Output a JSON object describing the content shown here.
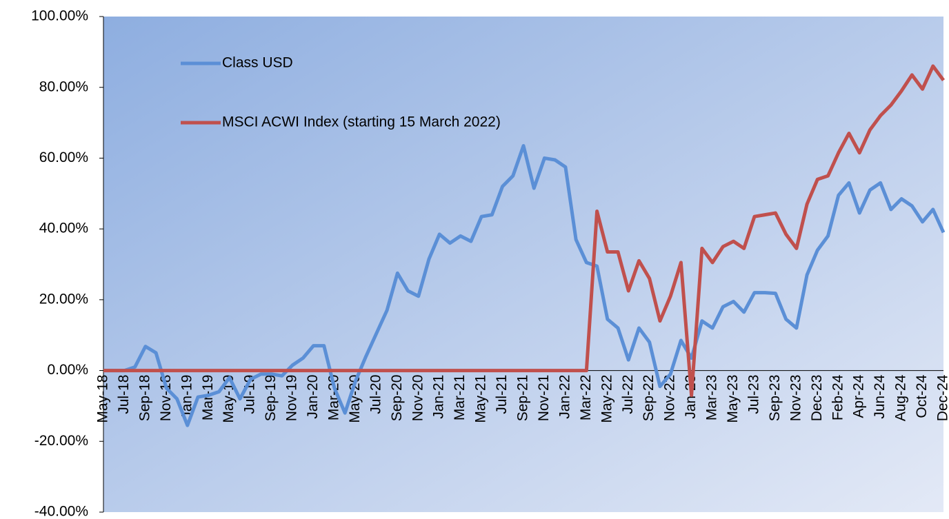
{
  "chart_data": {
    "type": "line",
    "categories": [
      "May-18",
      null,
      "Jul-18",
      null,
      "Sep-18",
      null,
      "Nov-18",
      null,
      "Jan-19",
      null,
      "Mar-19",
      null,
      "May-19",
      null,
      "Jul-19",
      null,
      "Sep-19",
      null,
      "Nov-19",
      null,
      "Jan-20",
      null,
      "Mar-20",
      null,
      "May-20",
      null,
      "Jul-20",
      null,
      "Sep-20",
      null,
      "Nov-20",
      null,
      "Jan-21",
      null,
      "Mar-21",
      null,
      "May-21",
      null,
      "Jul-21",
      null,
      "Sep-21",
      null,
      "Nov-21",
      null,
      "Jan-22",
      null,
      "Mar-22",
      null,
      "May-22",
      null,
      "Jul-22",
      null,
      "Sep-22",
      null,
      "Nov-22",
      null,
      "Jan-23",
      null,
      "Mar-23",
      null,
      "May-23",
      null,
      "Jul-23",
      null,
      "Sep-23",
      null,
      "Nov-23",
      null,
      "Dec-23",
      null,
      "Feb-24",
      null,
      "Apr-24",
      null,
      "Jun-24",
      null,
      "Aug-24",
      null,
      "Oct-24",
      null,
      "Dec-24"
    ],
    "series": [
      {
        "name": "Class USD",
        "color": "#5b8fd6",
        "values": [
          0,
          0,
          0,
          1,
          6.8,
          5,
          -5,
          -8,
          -15.5,
          -7.5,
          -7,
          -6,
          -2,
          -8,
          -2.5,
          -1,
          -1,
          -1.5,
          1.5,
          3.5,
          7,
          7,
          -5,
          -12,
          -3,
          4,
          10.5,
          17,
          27.5,
          22.5,
          21,
          31.5,
          38.5,
          36,
          38,
          36.5,
          43.5,
          44,
          52,
          55,
          63.5,
          51.5,
          60,
          59.5,
          57.5,
          37,
          30.5,
          29.5,
          14.5,
          12,
          3,
          12,
          8,
          -4.5,
          -1,
          8.5,
          3.5,
          14,
          12,
          18,
          19.5,
          16.5,
          22,
          22,
          21.8,
          14.5,
          12,
          27,
          34,
          38,
          49.5,
          53,
          44.5,
          51,
          53,
          45.5,
          48.5,
          46.5,
          42,
          45.5,
          39
        ]
      },
      {
        "name": "MSCI ACWI Index (starting 15 March 2022)",
        "color": "#c0504d",
        "values": [
          0,
          0,
          0,
          0,
          0,
          0,
          0,
          0,
          0,
          0,
          0,
          0,
          0,
          0,
          0,
          0,
          0,
          0,
          0,
          0,
          0,
          0,
          0,
          0,
          0,
          0,
          0,
          0,
          0,
          0,
          0,
          0,
          0,
          0,
          0,
          0,
          0,
          0,
          0,
          0,
          0,
          0,
          0,
          0,
          0,
          0,
          0,
          45,
          33.5,
          33.5,
          22.5,
          31,
          26,
          14,
          21,
          30.5,
          -7,
          34.5,
          30.5,
          35,
          36.5,
          34.5,
          43.5,
          44,
          44.5,
          38.5,
          34.5,
          47,
          54,
          55,
          61.5,
          67,
          61.5,
          68,
          72,
          75,
          79,
          83.5,
          79.5,
          86,
          82
        ]
      }
    ],
    "ylim": [
      -40,
      100
    ],
    "yticks": [
      {
        "value": -40,
        "label": "-40.00%"
      },
      {
        "value": -20,
        "label": "-20.00%"
      },
      {
        "value": 0,
        "label": "0.00%"
      },
      {
        "value": 20,
        "label": "20.00%"
      },
      {
        "value": 40,
        "label": "40.00%"
      },
      {
        "value": 60,
        "label": "60.00%"
      },
      {
        "value": 80,
        "label": "80.00%"
      },
      {
        "value": 100,
        "label": "100.00%"
      }
    ],
    "grid": false,
    "legend": "upper-left"
  }
}
